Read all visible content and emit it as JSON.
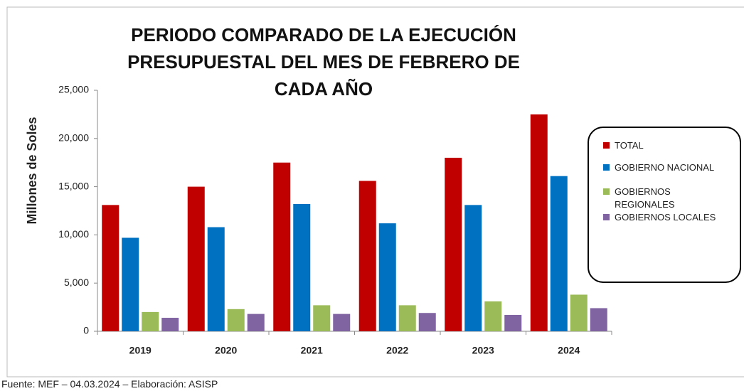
{
  "chart_data": {
    "type": "bar",
    "title": "PERIODO COMPARADO DE LA EJECUCIÓN PRESUPUESTAL DEL MES DE FEBRERO DE CADA AÑO",
    "ylabel": "Millones de Soles",
    "source": "Fuente:  MEF  – 04.03.2024 – Elaboración: ASISP",
    "categories": [
      "2019",
      "2020",
      "2021",
      "2022",
      "2023",
      "2024"
    ],
    "series": [
      {
        "name": "TOTAL",
        "color": "#c00000",
        "values": [
          13100,
          15000,
          17500,
          15600,
          18000,
          22500
        ]
      },
      {
        "name": "GOBIERNO NACIONAL",
        "color": "#0070c0",
        "values": [
          9700,
          10800,
          13200,
          11200,
          13100,
          16100
        ]
      },
      {
        "name": "GOBIERNOS REGIONALES",
        "color": "#9bbb59",
        "values": [
          2000,
          2300,
          2700,
          2700,
          3100,
          3800
        ]
      },
      {
        "name": "GOBIERNOS LOCALES",
        "color": "#8064a2",
        "values": [
          1400,
          1800,
          1800,
          1900,
          1700,
          2400
        ]
      }
    ],
    "ylim": [
      0,
      25000
    ],
    "yticks": [
      0,
      {
        "value": 5000,
        "label": "5,000"
      },
      {
        "value": 10000,
        "label": "10,000"
      },
      {
        "value": 15000,
        "label": "15,000"
      },
      {
        "value": 20000,
        "label": "20,000"
      },
      {
        "value": 25000,
        "label": "25,000"
      }
    ],
    "legend": "right"
  }
}
